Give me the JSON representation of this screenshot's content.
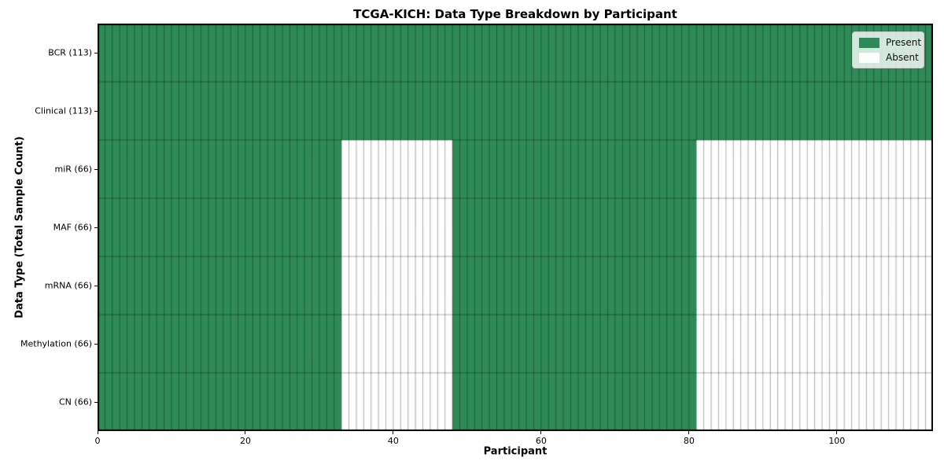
{
  "chart_data": {
    "type": "heatmap",
    "title": "TCGA-KICH: Data Type Breakdown by Participant",
    "xlabel": "Participant",
    "ylabel": "Data Type (Total Sample Count)",
    "n_participants": 113,
    "x_ticks": [
      0,
      20,
      40,
      60,
      80,
      100
    ],
    "xlim": [
      0,
      113
    ],
    "grid": true,
    "colors": {
      "present": "#2e8b57",
      "absent": "#ffffff",
      "cell_border": "rgba(0,0,0,0.42)",
      "plot_border": "#000000"
    },
    "rows": [
      {
        "label": "BCR (113)",
        "present_count": 113,
        "segments": [
          [
            0,
            113,
            1
          ]
        ]
      },
      {
        "label": "Clinical (113)",
        "present_count": 113,
        "segments": [
          [
            0,
            113,
            1
          ]
        ]
      },
      {
        "label": "miR (66)",
        "present_count": 66,
        "segments": [
          [
            0,
            33,
            1
          ],
          [
            33,
            48,
            0
          ],
          [
            48,
            81,
            1
          ],
          [
            81,
            113,
            0
          ]
        ]
      },
      {
        "label": "MAF (66)",
        "present_count": 66,
        "segments": [
          [
            0,
            33,
            1
          ],
          [
            33,
            48,
            0
          ],
          [
            48,
            81,
            1
          ],
          [
            81,
            113,
            0
          ]
        ]
      },
      {
        "label": "mRNA (66)",
        "present_count": 66,
        "segments": [
          [
            0,
            33,
            1
          ],
          [
            33,
            48,
            0
          ],
          [
            48,
            81,
            1
          ],
          [
            81,
            113,
            0
          ]
        ]
      },
      {
        "label": "Methylation (66)",
        "present_count": 66,
        "segments": [
          [
            0,
            33,
            1
          ],
          [
            33,
            48,
            0
          ],
          [
            48,
            81,
            1
          ],
          [
            81,
            113,
            0
          ]
        ]
      },
      {
        "label": "CN (66)",
        "present_count": 66,
        "segments": [
          [
            0,
            33,
            1
          ],
          [
            33,
            48,
            0
          ],
          [
            48,
            81,
            1
          ],
          [
            81,
            113,
            0
          ]
        ]
      }
    ],
    "legend": {
      "position": "top-right",
      "entries": [
        {
          "label": "Present",
          "color": "#2e8b57"
        },
        {
          "label": "Absent",
          "color": "#ffffff"
        }
      ]
    }
  }
}
